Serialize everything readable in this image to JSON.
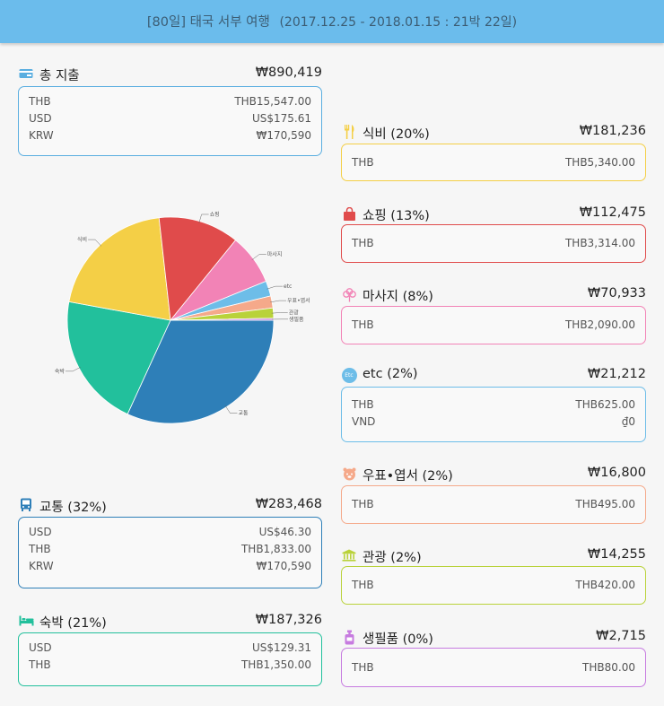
{
  "header": {
    "trip": "[80일] 태국 서부 여행",
    "period": "(2017.12.25 - 2018.01.15 : 21박 22일)"
  },
  "colors": {
    "header_bg": "#6bbcec",
    "total": "#5aaee0",
    "food": "#f4cf46",
    "shopping": "#e04b4b",
    "massage": "#f283b6",
    "etc": "#6dbde8",
    "post": "#f5a98a",
    "tour": "#b9d23a",
    "goods": "#c77be0",
    "transport": "#2e7fb8",
    "lodging": "#22c09c"
  },
  "total": {
    "label": "총 지출",
    "amount": "₩890,419",
    "icon": "wallet-icon",
    "rows": [
      {
        "currency": "THB",
        "value": "THB15,547.00"
      },
      {
        "currency": "USD",
        "value": "US$175.61"
      },
      {
        "currency": "KRW",
        "value": "₩170,590"
      }
    ]
  },
  "transport": {
    "label": "교통 (32%)",
    "amount": "₩283,468",
    "icon": "bus-icon",
    "rows": [
      {
        "currency": "USD",
        "value": "US$46.30"
      },
      {
        "currency": "THB",
        "value": "THB1,833.00"
      },
      {
        "currency": "KRW",
        "value": "₩170,590"
      }
    ]
  },
  "lodging": {
    "label": "숙박 (21%)",
    "amount": "₩187,326",
    "icon": "bed-icon",
    "rows": [
      {
        "currency": "USD",
        "value": "US$129.31"
      },
      {
        "currency": "THB",
        "value": "THB1,350.00"
      }
    ]
  },
  "food": {
    "label": "식비 (20%)",
    "amount": "₩181,236",
    "icon": "fork-knife-icon",
    "rows": [
      {
        "currency": "THB",
        "value": "THB5,340.00"
      }
    ]
  },
  "shopping": {
    "label": "쇼핑 (13%)",
    "amount": "₩112,475",
    "icon": "shopping-bag-icon",
    "rows": [
      {
        "currency": "THB",
        "value": "THB3,314.00"
      }
    ]
  },
  "massage": {
    "label": "마사지 (8%)",
    "amount": "₩70,933",
    "icon": "flower-icon",
    "rows": [
      {
        "currency": "THB",
        "value": "THB2,090.00"
      }
    ]
  },
  "etc": {
    "label": "etc (2%)",
    "amount": "₩21,212",
    "icon": "etc-icon",
    "icon_text": "Etc",
    "rows": [
      {
        "currency": "THB",
        "value": "THB625.00"
      },
      {
        "currency": "VND",
        "value": "₫0"
      }
    ]
  },
  "post": {
    "label": "우표•엽서 (2%)",
    "amount": "₩16,800",
    "icon": "stamp-icon",
    "rows": [
      {
        "currency": "THB",
        "value": "THB495.00"
      }
    ]
  },
  "tour": {
    "label": "관광 (2%)",
    "amount": "₩14,255",
    "icon": "museum-icon",
    "rows": [
      {
        "currency": "THB",
        "value": "THB420.00"
      }
    ]
  },
  "goods": {
    "label": "생필품 (0%)",
    "amount": "₩2,715",
    "icon": "bottle-icon",
    "rows": [
      {
        "currency": "THB",
        "value": "THB80.00"
      }
    ]
  },
  "chart_data": {
    "type": "pie",
    "categories": [
      "교통",
      "숙박",
      "식비",
      "쇼핑",
      "마사지",
      "etc",
      "우표•엽서",
      "관광",
      "생필품"
    ],
    "values": [
      283468,
      187326,
      181236,
      112475,
      70933,
      21212,
      16800,
      14255,
      2715
    ],
    "colors": [
      "#2e7fb8",
      "#22c09c",
      "#f4cf46",
      "#e04b4b",
      "#f283b6",
      "#6dbde8",
      "#f5a98a",
      "#b9d23a",
      "#c77be0"
    ],
    "legend": "none"
  }
}
